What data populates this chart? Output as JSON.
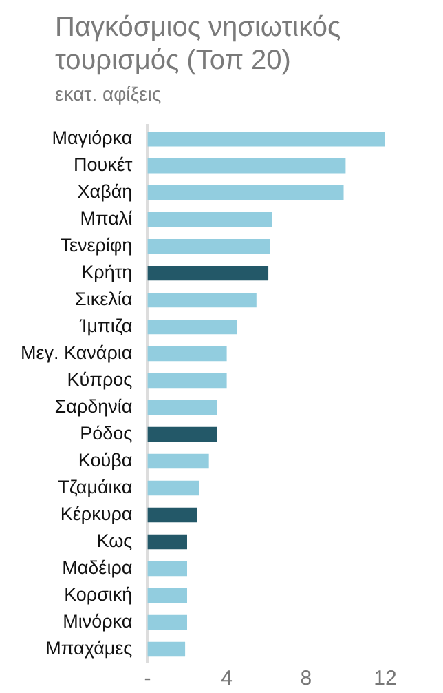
{
  "chart_data": {
    "type": "bar",
    "orientation": "horizontal",
    "title": "Παγκόσμιος νησιωτικός τουρισμός (Τοπ 20)",
    "subtitle": "εκατ. αφίξεις",
    "categories": [
      "Μαγιόρκα",
      "Πουκέτ",
      "Χαβάη",
      "Μπαλί",
      "Τενερίφη",
      "Κρήτη",
      "Σικελία",
      "Ίμπιζα",
      "Μεγ. Κανάρια",
      "Κύπρος",
      "Σαρδηνία",
      "Ρόδος",
      "Κούβα",
      "Τζαμάικα",
      "Κέρκυρα",
      "Κως",
      "Μαδέιρα",
      "Κορσική",
      "Μινόρκα",
      "Μπαχάμες"
    ],
    "values": [
      12.0,
      10.0,
      9.9,
      6.3,
      6.2,
      6.1,
      5.5,
      4.5,
      4.0,
      4.0,
      3.5,
      3.5,
      3.1,
      2.6,
      2.5,
      2.0,
      2.0,
      2.0,
      2.0,
      1.9
    ],
    "colors": [
      "#92cddf",
      "#92cddf",
      "#92cddf",
      "#92cddf",
      "#92cddf",
      "#235868",
      "#92cddf",
      "#92cddf",
      "#92cddf",
      "#92cddf",
      "#92cddf",
      "#235868",
      "#92cddf",
      "#92cddf",
      "#235868",
      "#235868",
      "#92cddf",
      "#92cddf",
      "#92cddf",
      "#92cddf"
    ],
    "xlim": [
      0,
      12
    ],
    "xticks": [
      {
        "value": 0,
        "label": "-"
      },
      4,
      8,
      12
    ],
    "grid": false,
    "legend": false
  }
}
